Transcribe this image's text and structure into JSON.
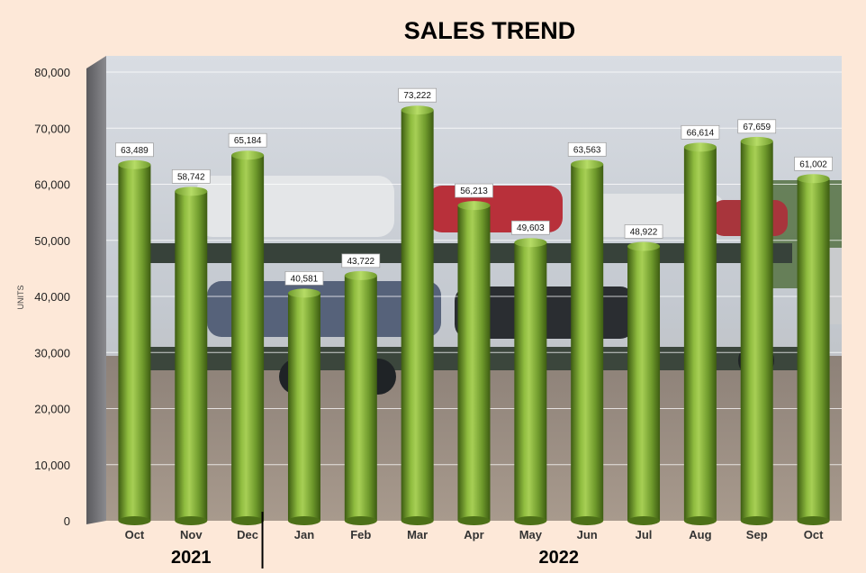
{
  "colors": {
    "background": "#fde8d8",
    "bar": "#6f9a2c",
    "bar_light": "#a7cf55",
    "bar_dark": "#3d5c12"
  },
  "chart_data": {
    "type": "bar",
    "title": "SALES TREND",
    "ylabel": "UNITS",
    "xlabel": "",
    "ylim": [
      0,
      80000
    ],
    "yticks": [
      "0",
      "10,000",
      "20,000",
      "30,000",
      "40,000",
      "50,000",
      "60,000",
      "70,000",
      "80,000"
    ],
    "categories": [
      "Oct",
      "Nov",
      "Dec",
      "Jan",
      "Feb",
      "Mar",
      "Apr",
      "May",
      "Jun",
      "Jul",
      "Aug",
      "Sep",
      "Oct"
    ],
    "values": [
      63489,
      58742,
      65184,
      40581,
      43722,
      73222,
      56213,
      49603,
      63563,
      48922,
      66614,
      67659,
      61002
    ],
    "data_labels": [
      "63,489",
      "58,742",
      "65,184",
      "40,581",
      "43,722",
      "73,222",
      "56,213",
      "49,603",
      "63,563",
      "48,922",
      "66,614",
      "67,659",
      "61,002"
    ],
    "groups": [
      {
        "label": "2021",
        "start": 0,
        "end": 2
      },
      {
        "label": "2022",
        "start": 3,
        "end": 12
      }
    ],
    "grid": true,
    "style": "3d-cylinder",
    "background": "photo of car carrier truck loaded with SUVs"
  }
}
